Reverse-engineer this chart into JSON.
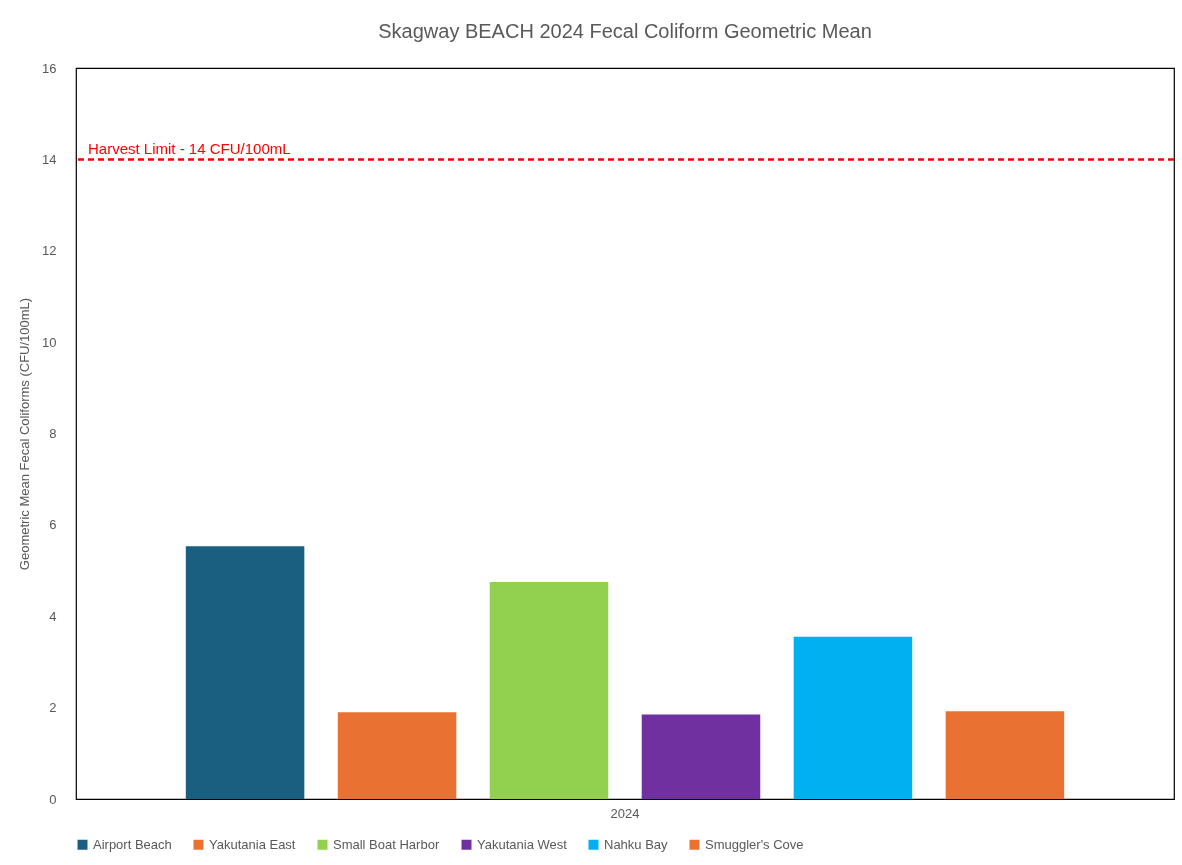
{
  "chart_data": {
    "type": "bar",
    "title": "Skagway BEACH 2024 Fecal Coliform Geometric Mean",
    "ylabel": "Geometric Mean Fecal Coliforms (CFU/100mL)",
    "categories": [
      "2024"
    ],
    "series": [
      {
        "name": "Airport Beach",
        "color": "#1a5e80",
        "values": [
          5.53
        ]
      },
      {
        "name": "Yakutania East",
        "color": "#e97132",
        "values": [
          1.9
        ]
      },
      {
        "name": "Small Boat Harbor",
        "color": "#92d050",
        "values": [
          4.75
        ]
      },
      {
        "name": "Yakutania West",
        "color": "#7030a0",
        "values": [
          1.85
        ]
      },
      {
        "name": "Nahku Bay",
        "color": "#00b0f0",
        "values": [
          3.55
        ]
      },
      {
        "name": "Smuggler's Cove",
        "color": "#e97132",
        "values": [
          1.92
        ]
      }
    ],
    "ylim": [
      0,
      16
    ],
    "yticks": [
      0,
      2,
      4,
      6,
      8,
      10,
      12,
      14,
      16
    ],
    "ref_lines": [
      {
        "axis": "y",
        "value": 14,
        "label": "Harvest Limit - 14 CFU/100mL",
        "color": "#ff0000",
        "line_style": "dashed"
      }
    ],
    "grid": false,
    "legend": "bottom"
  }
}
